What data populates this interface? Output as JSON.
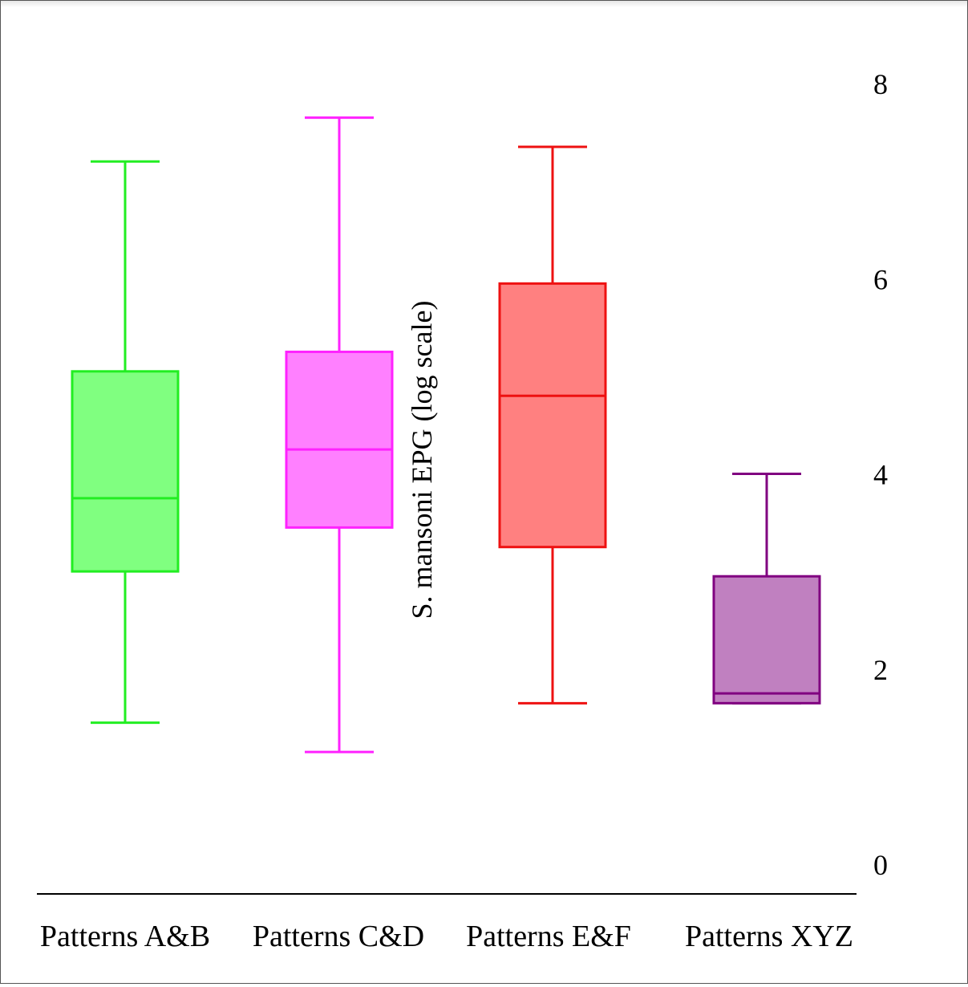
{
  "chart_data": {
    "type": "box",
    "title": "",
    "xlabel": "",
    "ylabel": "S. mansoni EPG (log scale)",
    "ylim": [
      0,
      8
    ],
    "yticks": [
      "0",
      "2",
      "4",
      "6",
      "8"
    ],
    "categories": [
      "Patterns A&B",
      "Patterns C&D",
      "Patterns E&F",
      "Patterns XYZ"
    ],
    "boxes": [
      {
        "name": "Patterns A&B",
        "whisker_low": 1.45,
        "q1": 3.0,
        "median": 3.75,
        "q3": 5.05,
        "whisker_high": 7.2,
        "stroke": "#22ee22",
        "fill": "#80ff80"
      },
      {
        "name": "Patterns C&D",
        "whisker_low": 1.15,
        "q1": 3.45,
        "median": 4.25,
        "q3": 5.25,
        "whisker_high": 7.65,
        "stroke": "#ff22ff",
        "fill": "#ff80ff"
      },
      {
        "name": "Patterns E&F",
        "whisker_low": 1.65,
        "q1": 3.25,
        "median": 4.8,
        "q3": 5.95,
        "whisker_high": 7.35,
        "stroke": "#ee1111",
        "fill": "#ff8080"
      },
      {
        "name": "Patterns XYZ",
        "whisker_low": 1.65,
        "q1": 1.65,
        "median": 1.75,
        "q3": 2.95,
        "whisker_high": 4.0,
        "stroke": "#800080",
        "fill": "#c080c0"
      }
    ],
    "grid": false,
    "legend": "none"
  }
}
